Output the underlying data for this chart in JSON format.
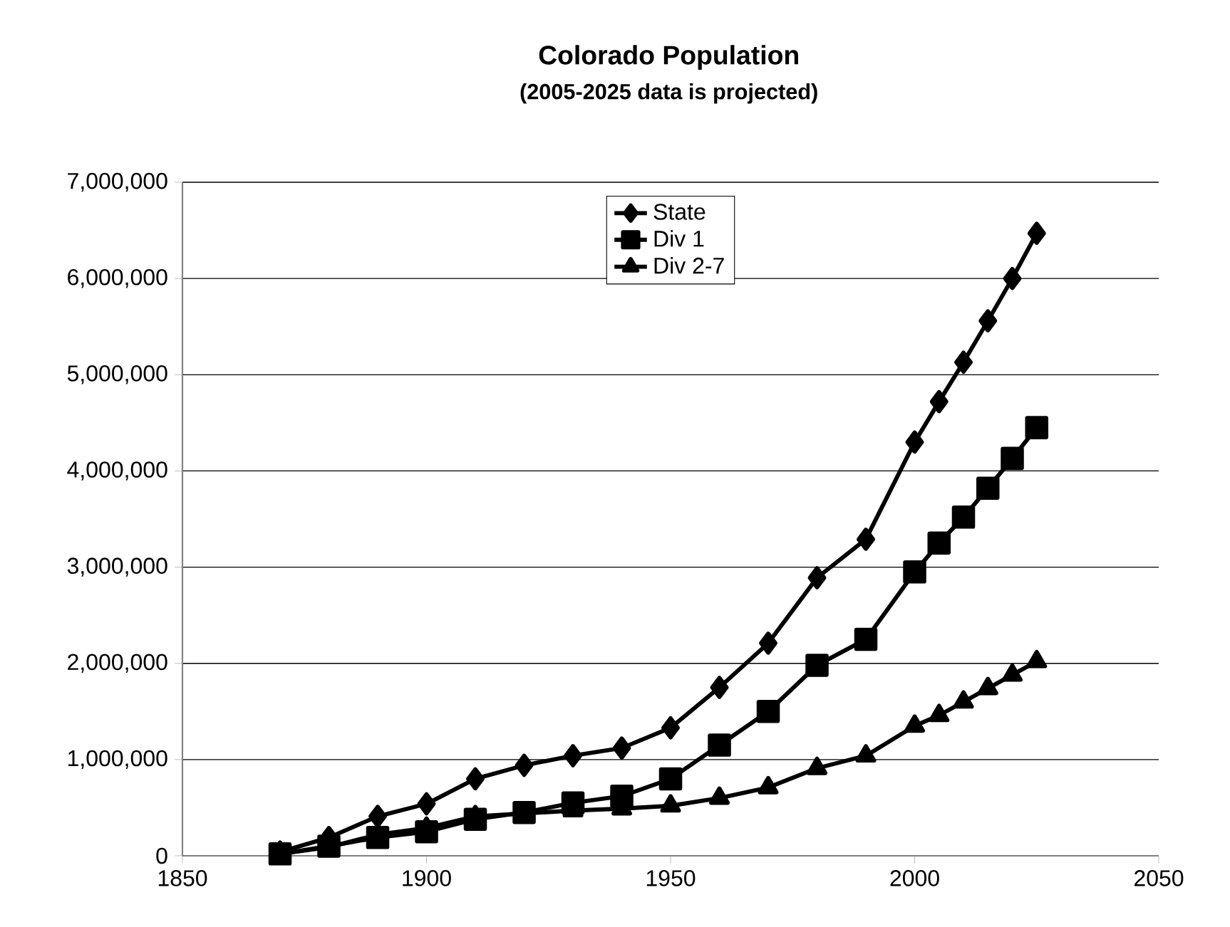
{
  "chart_data": {
    "type": "line",
    "title": "Colorado Population",
    "subtitle": "(2005-2025 data is projected)",
    "x": [
      1870,
      1880,
      1890,
      1900,
      1910,
      1920,
      1930,
      1940,
      1950,
      1960,
      1970,
      1980,
      1990,
      2000,
      2005,
      2010,
      2015,
      2020,
      2025
    ],
    "series": [
      {
        "name": "State",
        "color": "#000000",
        "marker": "diamond",
        "values": [
          40000,
          190000,
          410000,
          540000,
          800000,
          940000,
          1040000,
          1120000,
          1330000,
          1750000,
          2210000,
          2890000,
          3290000,
          4300000,
          4720000,
          5130000,
          5560000,
          6000000,
          6470000
        ]
      },
      {
        "name": "Div 1",
        "color": "#000000",
        "marker": "square",
        "values": [
          20000,
          100000,
          190000,
          250000,
          380000,
          450000,
          550000,
          620000,
          800000,
          1150000,
          1500000,
          1980000,
          2250000,
          2950000,
          3250000,
          3520000,
          3820000,
          4130000,
          4450000
        ]
      },
      {
        "name": "Div 2-7",
        "color": "#000000",
        "marker": "triangle",
        "values": [
          20000,
          90000,
          220000,
          290000,
          410000,
          440000,
          470000,
          490000,
          520000,
          600000,
          710000,
          910000,
          1040000,
          1350000,
          1460000,
          1600000,
          1740000,
          1880000,
          2020000
        ]
      }
    ],
    "xlim": [
      1850,
      2050
    ],
    "xticks": [
      1850,
      1900,
      1950,
      2000,
      2050
    ],
    "ylim": [
      0,
      7000000
    ],
    "yticks": [
      0,
      {
        "value": 1000000,
        "label": "1,000,000"
      },
      {
        "value": 2000000,
        "label": "2,000,000"
      },
      {
        "value": 3000000,
        "label": "3,000,000"
      },
      {
        "value": 4000000,
        "label": "4,000,000"
      },
      {
        "value": 5000000,
        "label": "5,000,000"
      },
      {
        "value": 6000000,
        "label": "6,000,000"
      },
      {
        "value": 7000000,
        "label": "7,000,000"
      }
    ],
    "grid": "y",
    "legend": "top",
    "line_style": "solid"
  }
}
